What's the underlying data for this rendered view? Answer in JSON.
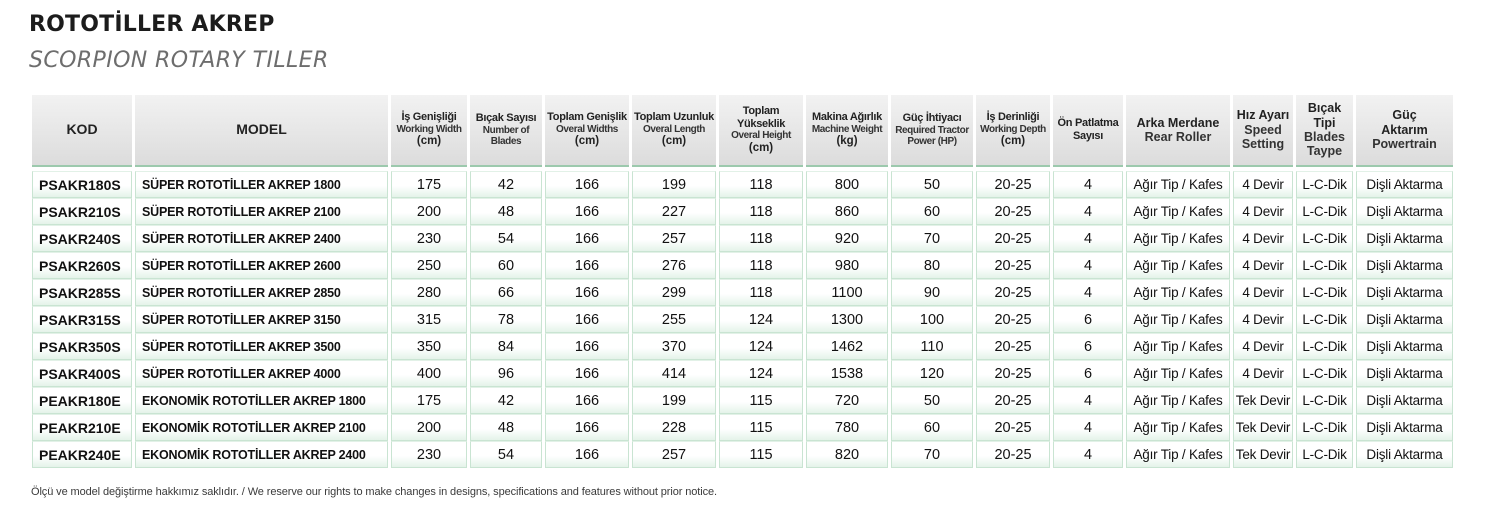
{
  "title": "ROTOTİLLER AKREP",
  "subtitle": "SCORPION ROTARY TILLER",
  "headers": {
    "kod": "KOD",
    "model": "MODEL",
    "width": {
      "tr": "İş Genişliği",
      "en": "Working Width",
      "unit": "(cm)"
    },
    "blades": {
      "tr": "Bıçak Sayısı",
      "en1": "Number of",
      "en2": "Blades"
    },
    "total_width": {
      "tr": "Toplam Genişlik",
      "en": "Overal Widths",
      "unit": "(cm)"
    },
    "total_length": {
      "tr": "Toplam Uzunluk",
      "en": "Overal Length",
      "unit": "(cm)"
    },
    "total_height": {
      "tr": "Toplam Yükseklik",
      "en": "Overal Height",
      "unit": "(cm)"
    },
    "weight": {
      "tr": "Makina Ağırlık",
      "en": "Machine Weight",
      "unit": "(kg)"
    },
    "power": {
      "tr": "Güç İhtiyacı",
      "en1": "Required Tractor",
      "en2": "Power",
      "unit": "(HP)"
    },
    "depth": {
      "tr": "İş Derinliği",
      "en": "Working Depth",
      "unit": "(cm)"
    },
    "explosion": {
      "tr1": "Ön Patlatma",
      "tr2": "Sayısı"
    },
    "roller": {
      "tr": "Arka Merdane",
      "en": "Rear Roller"
    },
    "speed": {
      "tr": "Hız Ayarı",
      "en1": "Speed",
      "en2": "Setting"
    },
    "blade_type": {
      "tr": "Bıçak Tipi",
      "en1": "Blades",
      "en2": "Taype"
    },
    "powertrain": {
      "tr1": "Güç",
      "tr2": "Aktarım",
      "en": "Powertrain"
    }
  },
  "rows": [
    [
      "PSAKR180S",
      "SÜPER ROTOTİLLER AKREP 1800",
      "175",
      "42",
      "166",
      "199",
      "118",
      "800",
      "50",
      "20-25",
      "4",
      "Ağır Tip / Kafes",
      "4 Devir",
      "L-C-Dik",
      "Dişli Aktarma"
    ],
    [
      "PSAKR210S",
      "SÜPER ROTOTİLLER AKREP 2100",
      "200",
      "48",
      "166",
      "227",
      "118",
      "860",
      "60",
      "20-25",
      "4",
      "Ağır Tip / Kafes",
      "4 Devir",
      "L-C-Dik",
      "Dişli Aktarma"
    ],
    [
      "PSAKR240S",
      "SÜPER ROTOTİLLER AKREP 2400",
      "230",
      "54",
      "166",
      "257",
      "118",
      "920",
      "70",
      "20-25",
      "4",
      "Ağır Tip / Kafes",
      "4 Devir",
      "L-C-Dik",
      "Dişli Aktarma"
    ],
    [
      "PSAKR260S",
      "SÜPER ROTOTİLLER AKREP 2600",
      "250",
      "60",
      "166",
      "276",
      "118",
      "980",
      "80",
      "20-25",
      "4",
      "Ağır Tip / Kafes",
      "4 Devir",
      "L-C-Dik",
      "Dişli Aktarma"
    ],
    [
      "PSAKR285S",
      "SÜPER ROTOTİLLER AKREP 2850",
      "280",
      "66",
      "166",
      "299",
      "118",
      "1100",
      "90",
      "20-25",
      "4",
      "Ağır Tip / Kafes",
      "4 Devir",
      "L-C-Dik",
      "Dişli Aktarma"
    ],
    [
      "PSAKR315S",
      "SÜPER ROTOTİLLER AKREP 3150",
      "315",
      "78",
      "166",
      "255",
      "124",
      "1300",
      "100",
      "20-25",
      "6",
      "Ağır Tip / Kafes",
      "4 Devir",
      "L-C-Dik",
      "Dişli Aktarma"
    ],
    [
      "PSAKR350S",
      "SÜPER ROTOTİLLER AKREP 3500",
      "350",
      "84",
      "166",
      "370",
      "124",
      "1462",
      "110",
      "20-25",
      "6",
      "Ağır Tip / Kafes",
      "4 Devir",
      "L-C-Dik",
      "Dişli Aktarma"
    ],
    [
      "PSAKR400S",
      "SÜPER ROTOTİLLER AKREP 4000",
      "400",
      "96",
      "166",
      "414",
      "124",
      "1538",
      "120",
      "20-25",
      "6",
      "Ağır Tip / Kafes",
      "4 Devir",
      "L-C-Dik",
      "Dişli Aktarma"
    ],
    [
      "PEAKR180E",
      "EKONOMİK ROTOTİLLER AKREP 1800",
      "175",
      "42",
      "166",
      "199",
      "115",
      "720",
      "50",
      "20-25",
      "4",
      "Ağır Tip / Kafes",
      "Tek Devir",
      "L-C-Dik",
      "Dişli Aktarma"
    ],
    [
      "PEAKR210E",
      "EKONOMİK ROTOTİLLER AKREP 2100",
      "200",
      "48",
      "166",
      "228",
      "115",
      "780",
      "60",
      "20-25",
      "4",
      "Ağır Tip / Kafes",
      "Tek Devir",
      "L-C-Dik",
      "Dişli Aktarma"
    ],
    [
      "PEAKR240E",
      "EKONOMİK ROTOTİLLER AKREP 2400",
      "230",
      "54",
      "166",
      "257",
      "115",
      "820",
      "70",
      "20-25",
      "4",
      "Ağır Tip / Kafes",
      "Tek Devir",
      "L-C-Dik",
      "Dişli Aktarma"
    ]
  ],
  "footnote": "Ölçü ve model değiştirme hakkımız saklıdır. / We reserve our rights to make changes in designs, specifications and features without prior notice.",
  "colors": {
    "row_accent": "#e4f3e9",
    "border": "#c9e4d2",
    "header_bg": "#dcdcdc"
  }
}
